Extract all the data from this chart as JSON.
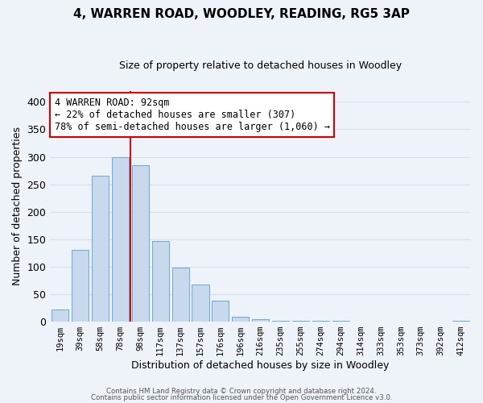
{
  "title": "4, WARREN ROAD, WOODLEY, READING, RG5 3AP",
  "subtitle": "Size of property relative to detached houses in Woodley",
  "xlabel": "Distribution of detached houses by size in Woodley",
  "ylabel": "Number of detached properties",
  "bar_labels": [
    "19sqm",
    "39sqm",
    "58sqm",
    "78sqm",
    "98sqm",
    "117sqm",
    "137sqm",
    "157sqm",
    "176sqm",
    "196sqm",
    "216sqm",
    "235sqm",
    "255sqm",
    "274sqm",
    "294sqm",
    "314sqm",
    "333sqm",
    "353sqm",
    "373sqm",
    "392sqm",
    "412sqm"
  ],
  "bar_heights": [
    22,
    130,
    265,
    300,
    285,
    147,
    98,
    68,
    38,
    9,
    5,
    2,
    2,
    1,
    1,
    0,
    0,
    0,
    0,
    0,
    1
  ],
  "bar_color": "#c8d8ed",
  "bar_edge_color": "#6aaad4",
  "vline_x_index": 4,
  "vline_color": "#cc0000",
  "ylim": [
    0,
    420
  ],
  "yticks": [
    0,
    50,
    100,
    150,
    200,
    250,
    300,
    350,
    400
  ],
  "annotation_title": "4 WARREN ROAD: 92sqm",
  "annotation_line2": "← 22% of detached houses are smaller (307)",
  "annotation_line3": "78% of semi-detached houses are larger (1,060) →",
  "annotation_box_color": "#ffffff",
  "annotation_box_edge": "#cc0000",
  "footer1": "Contains HM Land Registry data © Crown copyright and database right 2024.",
  "footer2": "Contains public sector information licensed under the Open Government Licence v3.0.",
  "background_color": "#eef2f9",
  "grid_color": "#d8e0ed",
  "title_fontsize": 11,
  "subtitle_fontsize": 9,
  "ylabel_fontsize": 9,
  "xlabel_fontsize": 9
}
